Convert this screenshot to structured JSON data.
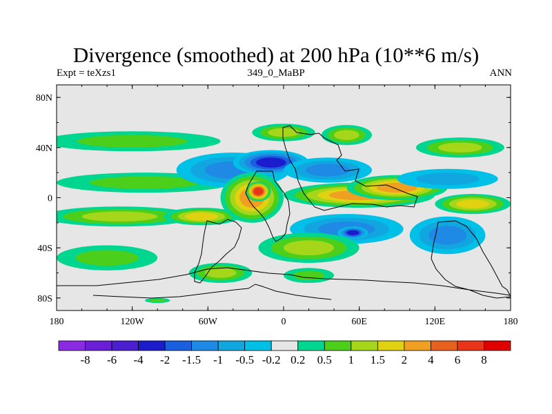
{
  "chart_data": {
    "type": "heatmap",
    "title": "Divergence (smoothed) at 200 hPa (10**6 m/s)",
    "left_label": "Expt = teXzs1",
    "center_label": "349_0_MaBP",
    "right_label": "ANN",
    "x_tick_labels": [
      "180",
      "120W",
      "60W",
      "0",
      "60E",
      "120E",
      "180"
    ],
    "x_tick_values": [
      -180,
      -120,
      -60,
      0,
      60,
      120,
      180
    ],
    "y_tick_labels": [
      "80N",
      "40N",
      "0",
      "40S",
      "80S"
    ],
    "y_tick_values": [
      80,
      40,
      0,
      -40,
      -80
    ],
    "xlim": [
      -180,
      180
    ],
    "ylim": [
      -90,
      90
    ],
    "colorbar": {
      "labels": [
        "-8",
        "-6",
        "-4",
        "-2",
        "-1.5",
        "-1",
        "-0.5",
        "-0.2",
        "0.2",
        "0.5",
        "1",
        "1.5",
        "2",
        "4",
        "6",
        "8"
      ],
      "colors": [
        "#8a2be2",
        "#6a1fd6",
        "#4b1ecf",
        "#1c1ccc",
        "#1a5fe0",
        "#1e8ae6",
        "#12a6e0",
        "#00c0e8",
        "#e6e6e6",
        "#00d68f",
        "#4ccf1a",
        "#a6d61a",
        "#e0d210",
        "#f0a020",
        "#e8601e",
        "#e83418",
        "#e00000"
      ]
    },
    "fields": {
      "background": "#e6e6e6",
      "blobs": [
        {
          "lon": -120,
          "lat": 45,
          "rlon": 70,
          "rlat": 8,
          "value": 0.8
        },
        {
          "lon": -110,
          "lat": 12,
          "rlon": 70,
          "rlat": 8,
          "value": 0.7
        },
        {
          "lon": -130,
          "lat": -15,
          "rlon": 60,
          "rlat": 8,
          "value": 1.3
        },
        {
          "lon": -140,
          "lat": -48,
          "rlon": 40,
          "rlat": 10,
          "value": 0.9
        },
        {
          "lon": -65,
          "lat": -15,
          "rlon": 30,
          "rlat": 7,
          "value": 1.6
        },
        {
          "lon": -40,
          "lat": 22,
          "rlon": 45,
          "rlat": 14,
          "value": -1.2
        },
        {
          "lon": -10,
          "lat": 28,
          "rlon": 30,
          "rlat": 10,
          "value": -3.0
        },
        {
          "lon": -25,
          "lat": 0,
          "rlon": 25,
          "rlat": 20,
          "value": 3.0
        },
        {
          "lon": -20,
          "lat": 5,
          "rlon": 10,
          "rlat": 8,
          "value": 6.0
        },
        {
          "lon": 0,
          "lat": 52,
          "rlon": 25,
          "rlat": 7,
          "value": 1.4
        },
        {
          "lon": 50,
          "lat": 50,
          "rlon": 20,
          "rlat": 8,
          "value": 1.1
        },
        {
          "lon": 35,
          "lat": 22,
          "rlon": 35,
          "rlat": 10,
          "value": -1.2
        },
        {
          "lon": 60,
          "lat": 2,
          "rlon": 60,
          "rlat": 10,
          "value": 3.0
        },
        {
          "lon": 90,
          "lat": 8,
          "rlon": 40,
          "rlat": 10,
          "value": 2.0
        },
        {
          "lon": 50,
          "lat": -25,
          "rlon": 45,
          "rlat": 12,
          "value": -1.2
        },
        {
          "lon": 55,
          "lat": -28,
          "rlon": 12,
          "rlat": 5,
          "value": -3.0
        },
        {
          "lon": 20,
          "lat": -40,
          "rlon": 40,
          "rlat": 12,
          "value": 1.1
        },
        {
          "lon": 130,
          "lat": -30,
          "rlon": 30,
          "rlat": 15,
          "value": -1.0
        },
        {
          "lon": 150,
          "lat": -5,
          "rlon": 30,
          "rlat": 8,
          "value": 1.6
        },
        {
          "lon": 130,
          "lat": 15,
          "rlon": 40,
          "rlat": 8,
          "value": -0.7
        },
        {
          "lon": 140,
          "lat": 40,
          "rlon": 35,
          "rlat": 8,
          "value": 1.0
        },
        {
          "lon": -50,
          "lat": -60,
          "rlon": 25,
          "rlat": 8,
          "value": 1.0
        },
        {
          "lon": 20,
          "lat": -62,
          "rlon": 20,
          "rlat": 6,
          "value": 0.8
        },
        {
          "lon": -100,
          "lat": -82,
          "rlon": 10,
          "rlat": 2,
          "value": 0.6
        }
      ]
    }
  }
}
